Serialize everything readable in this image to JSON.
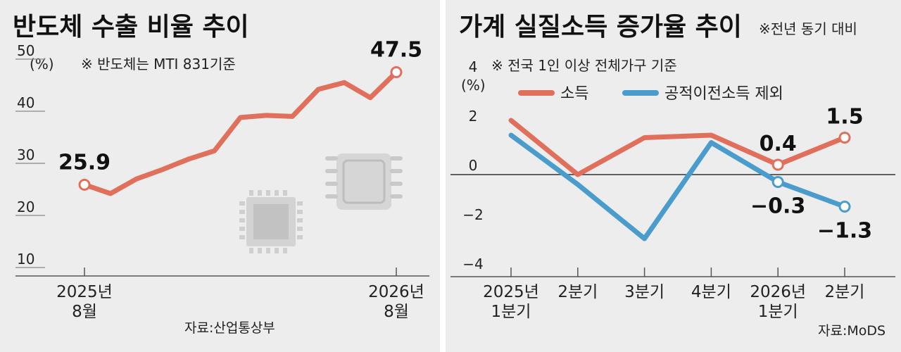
{
  "left": {
    "title": "반도체 수출 비율 추이",
    "note": "※ 반도체는 MTI 831기준",
    "unit": "(%)",
    "source": "자료:산업통상부",
    "colors": {
      "line": "#e0705c",
      "marker_fill": "#ffffff"
    },
    "icon": "semiconductor-chip-icon"
  },
  "right": {
    "title": "가계 실질소득 증가율 추이",
    "title_note": "※전년 동기 대비",
    "note": "※ 전국 1인 이상 전체가구 기준",
    "unit": "(%)",
    "source": "자료:MoDS",
    "colors": {
      "income": "#e0705c",
      "excl_transfer": "#4a9ccc"
    }
  },
  "chart_data": [
    {
      "type": "line",
      "title": "반도체 수출 비율 추이",
      "ylabel": "(%)",
      "ylim": [
        10,
        50
      ],
      "yticks": [
        10,
        20,
        30,
        40,
        50
      ],
      "x_tick_labels": [
        {
          "index": 0,
          "lines": [
            "2025년",
            "8월"
          ]
        },
        {
          "index": 12,
          "lines": [
            "2026년",
            "8월"
          ]
        }
      ],
      "x": [
        "2025-08",
        "2025-09",
        "2025-10",
        "2025-11",
        "2025-12",
        "2026-01",
        "2026-02",
        "2026-03",
        "2026-04",
        "2026-05",
        "2026-06",
        "2026-07",
        "2026-08"
      ],
      "series": [
        {
          "values": [
            25.9,
            24.2,
            27.0,
            28.8,
            30.8,
            32.4,
            38.8,
            39.2,
            39.0,
            44.2,
            45.5,
            42.6,
            47.5
          ],
          "labels": [
            {
              "index": 0,
              "text": "25.9"
            },
            {
              "index": 12,
              "text": "47.5"
            }
          ]
        }
      ],
      "grid": false
    },
    {
      "type": "line",
      "title": "가계 실질소득 증가율 추이",
      "ylabel": "(%)",
      "ylim": [
        -4,
        4
      ],
      "yticks": [
        4,
        2,
        0,
        -2,
        -4
      ],
      "categories": [
        [
          "2025년",
          "1분기"
        ],
        [
          "2분기"
        ],
        [
          "3분기"
        ],
        [
          "4분기"
        ],
        [
          "2026년",
          "1분기"
        ],
        [
          "2분기"
        ]
      ],
      "series": [
        {
          "name": "소득",
          "values": [
            2.2,
            0.0,
            1.5,
            1.6,
            0.4,
            1.5
          ],
          "labels": [
            {
              "index": 4,
              "text": "0.4"
            },
            {
              "index": 5,
              "text": "1.5"
            }
          ]
        },
        {
          "name": "공적이전소득 제외",
          "values": [
            1.6,
            -0.4,
            -2.6,
            1.3,
            -0.3,
            -1.3
          ],
          "labels": [
            {
              "index": 4,
              "text": "−0.3"
            },
            {
              "index": 5,
              "text": "−1.3"
            }
          ]
        }
      ],
      "legend": "top",
      "grid": false
    }
  ]
}
